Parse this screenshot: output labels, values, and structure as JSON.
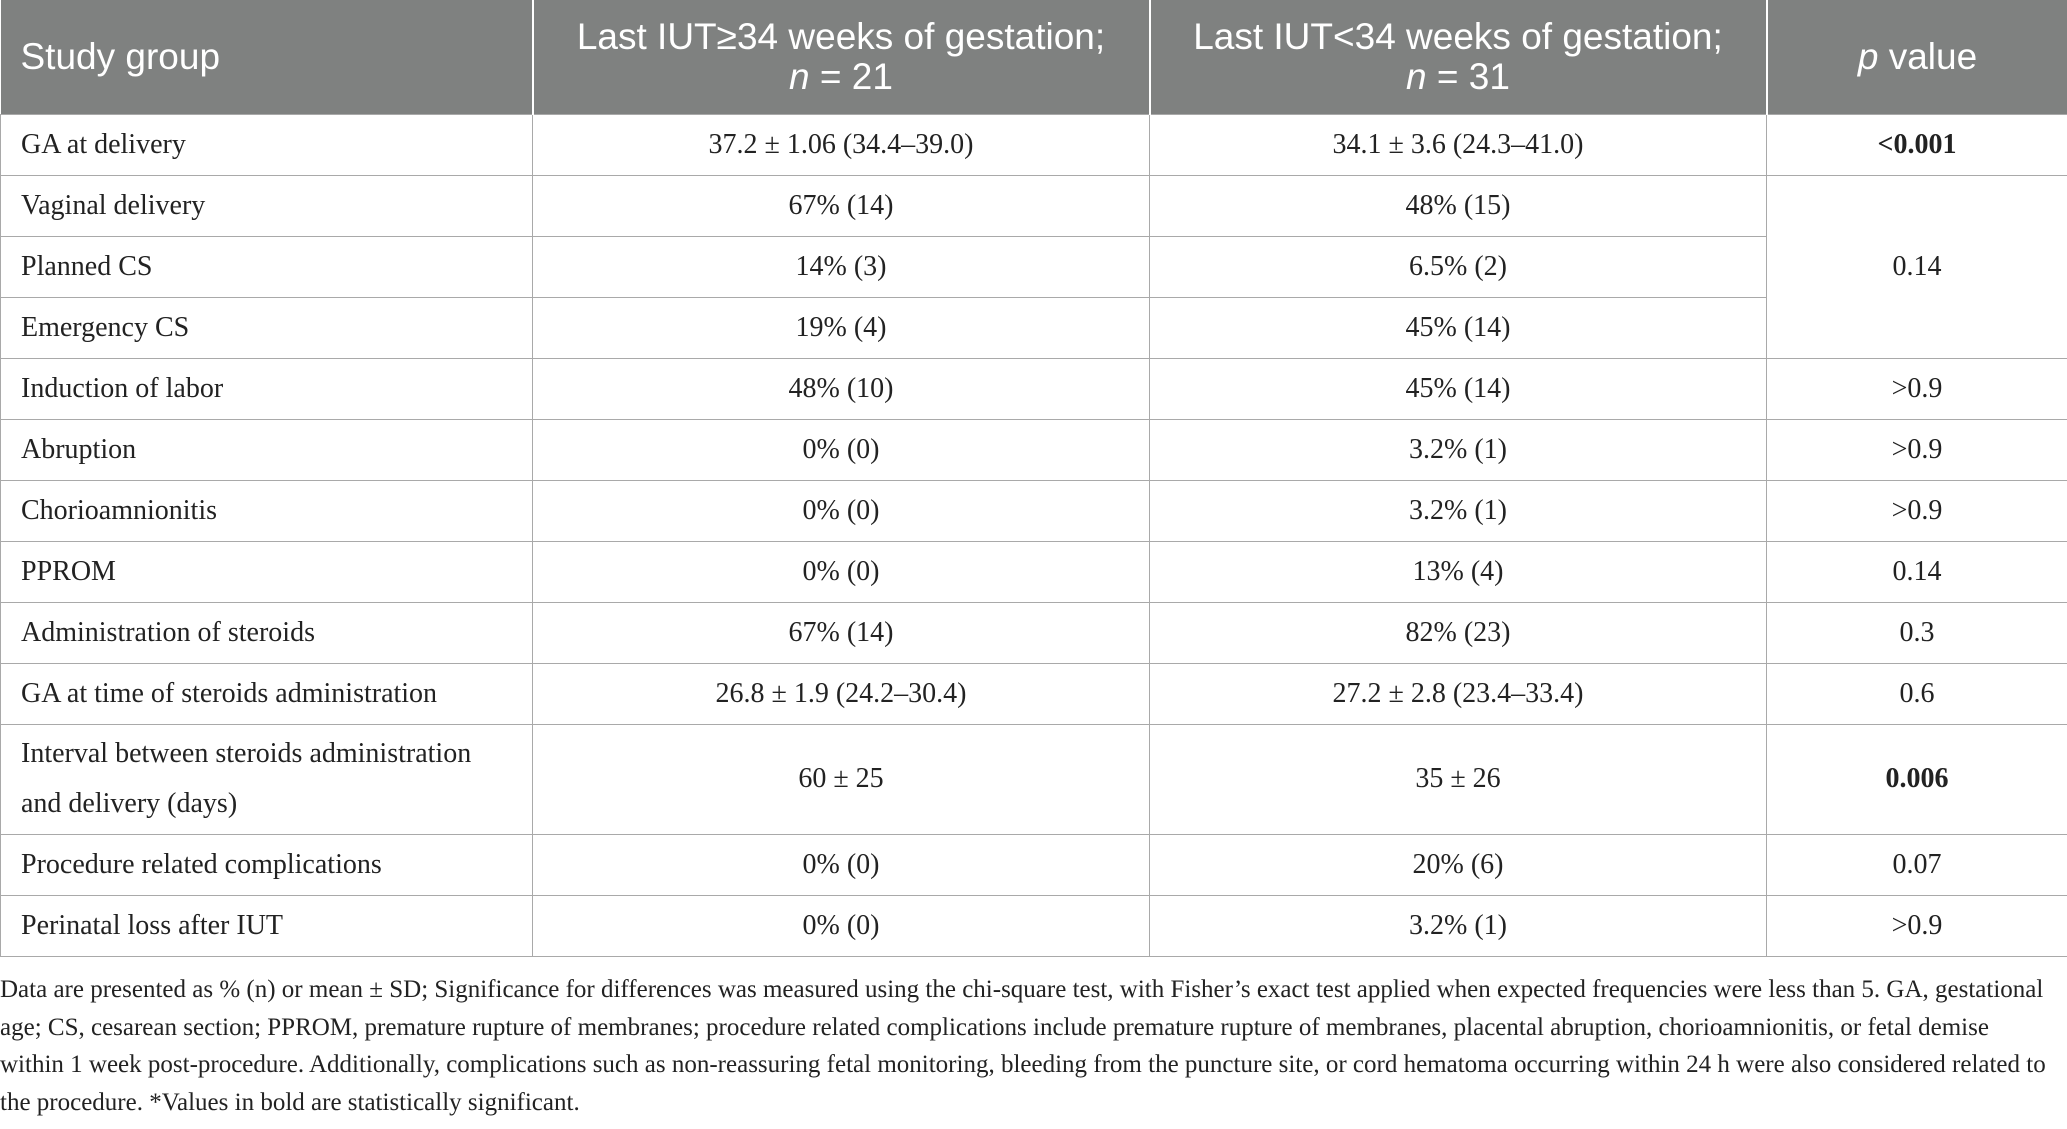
{
  "table": {
    "headers": {
      "col1": "Study group",
      "col2_line1": "Last IUT≥34 weeks of gestation;",
      "col2_n_italic": "n",
      "col2_n_value": " = 21",
      "col3_line1": "Last IUT<34 weeks of gestation;",
      "col3_n_italic": "n",
      "col3_n_value": " = 31",
      "col4_italic": "p",
      "col4_rest": " value"
    },
    "rows": [
      {
        "label": "GA at delivery",
        "ge34": "37.2 ± 1.06 (34.4–39.0)",
        "lt34": "34.1 ± 3.6 (24.3–41.0)",
        "p": "<0.001",
        "p_bold": true
      },
      {
        "label": "Vaginal delivery",
        "ge34": "67% (14)",
        "lt34": "48% (15)"
      },
      {
        "label": "Planned CS",
        "ge34": "14% (3)",
        "lt34": "6.5% (2)"
      },
      {
        "label": "Emergency CS",
        "ge34": "19% (4)",
        "lt34": "45% (14)"
      },
      {
        "label": "Induction of labor",
        "ge34": "48% (10)",
        "lt34": "45% (14)",
        "p": ">0.9"
      },
      {
        "label": "Abruption",
        "ge34": "0% (0)",
        "lt34": "3.2% (1)",
        "p": ">0.9"
      },
      {
        "label": "Chorioamnionitis",
        "ge34": "0% (0)",
        "lt34": "3.2% (1)",
        "p": ">0.9"
      },
      {
        "label": "PPROM",
        "ge34": "0% (0)",
        "lt34": "13% (4)",
        "p": "0.14"
      },
      {
        "label": "Administration of steroids",
        "ge34": "67% (14)",
        "lt34": "82% (23)",
        "p": "0.3"
      },
      {
        "label": "GA at time of steroids administration",
        "ge34": "26.8 ± 1.9 (24.2–30.4)",
        "lt34": "27.2 ± 2.8 (23.4–33.4)",
        "p": "0.6"
      },
      {
        "label_line1": "Interval between steroids administration",
        "label_line2": "and delivery (days)",
        "ge34": "60 ± 25",
        "lt34": "35 ± 26",
        "p": "0.006",
        "p_bold": true
      },
      {
        "label": "Procedure related complications",
        "ge34": "0% (0)",
        "lt34": "20% (6)",
        "p": "0.07"
      },
      {
        "label": "Perinatal loss after IUT",
        "ge34": "0% (0)",
        "lt34": "3.2% (1)",
        "p": ">0.9"
      }
    ],
    "merged_delivery_p": "0.14"
  },
  "footnote": "Data are presented as % (n) or mean ± SD; Significance for differences was measured using the chi-square test, with Fisher’s exact test applied when expected frequencies were less than 5. GA, gestational age; CS, cesarean section; PPROM, premature rupture of membranes; procedure related complications include premature rupture of membranes, placental abruption, chorioamnionitis, or fetal demise within 1 week post-procedure. Additionally, complications such as non-reassuring fetal monitoring, bleeding from the puncture site, or cord hematoma occurring within 24 h were also considered related to the procedure. *Values in bold are statistically significant."
}
